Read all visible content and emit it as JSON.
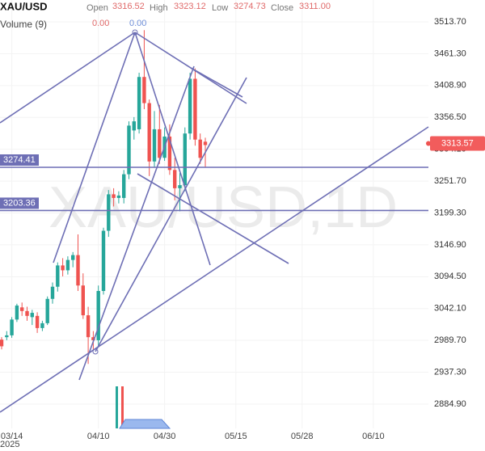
{
  "chart_data": {
    "type": "candlestick",
    "symbol": "XAU/USD",
    "ohlc_legend": [
      {
        "label": "Open",
        "value": "3316.52"
      },
      {
        "label": "High",
        "value": "3323.12"
      },
      {
        "label": "Low",
        "value": "3274.73"
      },
      {
        "label": "Close",
        "value": "3311.00"
      }
    ],
    "volume_label": "Volume (9)",
    "volume_legend": [
      "0.00",
      "0.00"
    ],
    "watermark": "XAU/USD,1D",
    "x_sublabel": "2025",
    "categories": [
      null,
      null,
      "03/14",
      null,
      null,
      null,
      null,
      null,
      null,
      null,
      null,
      null,
      null,
      null,
      null,
      null,
      null,
      null,
      null,
      "04/10",
      null,
      null,
      null,
      null,
      null,
      null,
      null,
      null,
      null,
      null,
      null,
      null,
      "04/30",
      null,
      null,
      null,
      null,
      null,
      null,
      null,
      null,
      null,
      null,
      null,
      null,
      null,
      "05/15",
      null,
      null,
      null,
      null,
      null,
      null,
      null,
      null,
      null,
      null,
      null,
      null,
      "05/28",
      null,
      null,
      null,
      null,
      null,
      null,
      null,
      null,
      null,
      null,
      null,
      null,
      null,
      "06/10"
    ],
    "open": [
      2991,
      2995,
      2998,
      3024,
      3044,
      3038,
      3028,
      3030,
      3010,
      3018,
      3058,
      3078,
      3113,
      3105,
      3122,
      3130,
      3080,
      3031,
      2995,
      2990,
      3071,
      3170,
      3230,
      3224,
      3224,
      3263,
      3335,
      3337,
      3423,
      3380,
      3284,
      3337,
      3290,
      3325,
      3270,
      3240,
      3245,
      3330,
      3420,
      3320,
      3316.52,
      null,
      null,
      null,
      null,
      null,
      null,
      null,
      null,
      null,
      null,
      null,
      null,
      null,
      null,
      null,
      null,
      null,
      null,
      null,
      null,
      null,
      null,
      null,
      null,
      null,
      null,
      null,
      null,
      null,
      null,
      null,
      null,
      null
    ],
    "high": [
      2995,
      3005,
      3028,
      3050,
      3052,
      3045,
      3040,
      3036,
      3022,
      3062,
      3085,
      3118,
      3125,
      3128,
      3135,
      3164,
      3100,
      3045,
      3005,
      3080,
      3175,
      3237,
      3240,
      3235,
      3270,
      3350,
      3357,
      3430,
      3500,
      3386,
      3367,
      3377,
      3340,
      3345,
      3290,
      3265,
      3340,
      3430,
      3437,
      3330,
      3323.12,
      null,
      null,
      null,
      null,
      null,
      null,
      null,
      null,
      null,
      null,
      null,
      null,
      null,
      null,
      null,
      null,
      null,
      null,
      null,
      null,
      null,
      null,
      null,
      null,
      null,
      null,
      null,
      null,
      null,
      null,
      null,
      null,
      null
    ],
    "low": [
      2975,
      2990,
      2994,
      3020,
      3030,
      3022,
      3015,
      3002,
      3005,
      3015,
      3050,
      3070,
      3095,
      3098,
      3110,
      3071,
      3025,
      2951,
      2975,
      2978,
      3065,
      3160,
      3210,
      3215,
      3215,
      3255,
      3320,
      3330,
      3370,
      3260,
      3275,
      3280,
      3285,
      3262,
      3220,
      3202,
      3235,
      3320,
      3310,
      3280,
      3274.73,
      null,
      null,
      null,
      null,
      null,
      null,
      null,
      null,
      null,
      null,
      null,
      null,
      null,
      null,
      null,
      null,
      null,
      null,
      null,
      null,
      null,
      null,
      null,
      null,
      null,
      null,
      null,
      null,
      null,
      null,
      null,
      null,
      null
    ],
    "close": [
      2980,
      2998,
      3024,
      3047,
      3038,
      3030,
      3035,
      3010,
      3018,
      3058,
      3078,
      3113,
      3105,
      3122,
      3130,
      3080,
      3031,
      2995,
      2990,
      3071,
      3170,
      3230,
      3224,
      3228,
      3263,
      3343,
      3350,
      3423,
      3380,
      3284,
      3337,
      3290,
      3325,
      3270,
      3240,
      3245,
      3330,
      3420,
      3320,
      3290,
      3311,
      null,
      null,
      null,
      null,
      null,
      null,
      null,
      null,
      null,
      null,
      null,
      null,
      null,
      null,
      null,
      null,
      null,
      null,
      null,
      null,
      null,
      null,
      null,
      null,
      null,
      null,
      null,
      null,
      null,
      null,
      null,
      null,
      null
    ],
    "up_color": "#26a69a",
    "down_color": "#ef5350",
    "ylim": [
      2845,
      3549.6
    ],
    "yticks": [
      {
        "value": 3513.7,
        "label": "3513.70"
      },
      {
        "value": 3461.3,
        "label": "3461.30"
      },
      {
        "value": 3408.9,
        "label": "3408.90"
      },
      {
        "value": 3356.5,
        "label": "3356.50"
      },
      {
        "value": 3304.1,
        "label": "3304.10"
      },
      {
        "value": 3251.7,
        "label": "3251.70"
      },
      {
        "value": 3199.3,
        "label": "3199.30"
      },
      {
        "value": 3146.9,
        "label": "3146.90"
      },
      {
        "value": 3094.5,
        "label": "3094.50"
      },
      {
        "value": 3042.1,
        "label": "3042.10"
      },
      {
        "value": 2989.7,
        "label": "2989.70"
      },
      {
        "value": 2937.3,
        "label": "2937.30"
      },
      {
        "value": 2884.9,
        "label": "2884.90"
      }
    ],
    "grid": true,
    "hlines": [
      3274.41,
      3203.36
    ],
    "current_price": 3313.57
  }
}
